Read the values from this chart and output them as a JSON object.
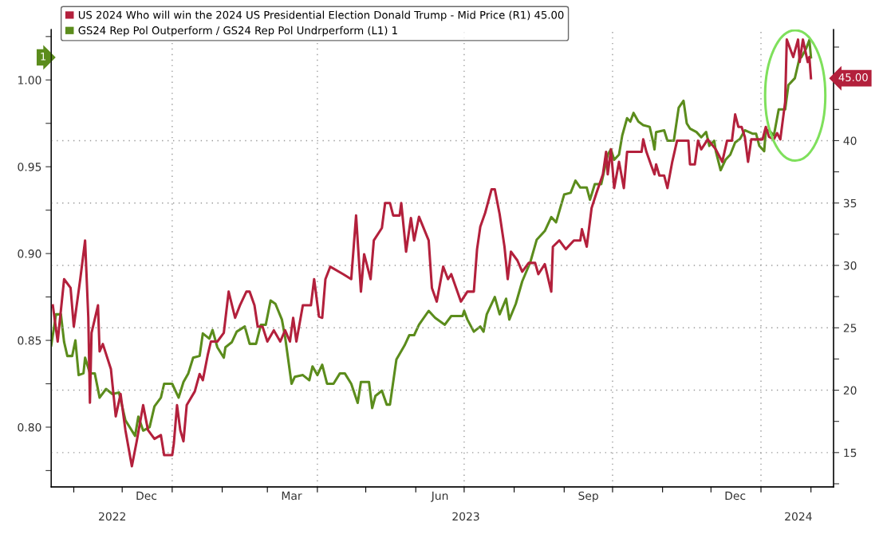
{
  "chart_data": {
    "type": "line",
    "xlim": [
      "2022-10-18",
      "2024-02-15"
    ],
    "xticks": [
      {
        "value": "2022-11-01",
        "label": null
      },
      {
        "value": "2022-12-01",
        "label": null
      },
      {
        "value": "2023-01-01",
        "label": null
      },
      {
        "value": "2023-02-01",
        "label": null
      },
      {
        "value": "2023-03-01",
        "label": null
      },
      {
        "value": "2023-04-01",
        "label": null
      },
      {
        "value": "2023-05-01",
        "label": null
      },
      {
        "value": "2023-06-01",
        "label": null
      },
      {
        "value": "2023-07-01",
        "label": null
      },
      {
        "value": "2023-08-01",
        "label": null
      },
      {
        "value": "2023-09-01",
        "label": null
      },
      {
        "value": "2023-10-01",
        "label": null
      },
      {
        "value": "2023-11-01",
        "label": null
      },
      {
        "value": "2023-12-01",
        "label": null
      },
      {
        "value": "2024-01-01",
        "label": null
      },
      {
        "value": "2024-02-01",
        "label": null
      },
      {
        "value": "2022-12-16",
        "label": "Dec"
      },
      {
        "value": "2023-03-16",
        "label": "Mar"
      },
      {
        "value": "2023-06-16",
        "label": "Jun"
      },
      {
        "value": "2023-09-16",
        "label": "Sep"
      },
      {
        "value": "2023-12-16",
        "label": "Dec"
      }
    ],
    "ylim": [
      0.7656,
      1.029
    ],
    "yticks": [
      {
        "value": 0.775,
        "label": null
      },
      {
        "value": 0.8,
        "label": "0.80"
      },
      {
        "value": 0.825,
        "label": null
      },
      {
        "value": 0.85,
        "label": "0.85"
      },
      {
        "value": 0.875,
        "label": null
      },
      {
        "value": 0.9,
        "label": "0.90"
      },
      {
        "value": 0.925,
        "label": null
      },
      {
        "value": 0.95,
        "label": "0.95"
      },
      {
        "value": 0.975,
        "label": null
      },
      {
        "value": 1.0,
        "label": "1.00"
      },
      {
        "value": 1.025,
        "label": null
      }
    ],
    "y2lim": [
      12.25,
      48.9
    ],
    "y2ticks": [
      {
        "value": 12.5,
        "label": null
      },
      15,
      {
        "value": 17.5,
        "label": null
      },
      20,
      {
        "value": 22.5,
        "label": null
      },
      25,
      {
        "value": 27.5,
        "label": null
      },
      30,
      {
        "value": 32.5,
        "label": null
      },
      35,
      {
        "value": 37.5,
        "label": null
      },
      40,
      {
        "value": 42.5,
        "label": null
      },
      {
        "value": 45,
        "label": null
      },
      {
        "value": 47.5,
        "label": null
      }
    ],
    "grid": true,
    "legend": "top left",
    "line_style": "solid",
    "annotations": [
      "45.00",
      "1",
      "2022",
      "2023",
      "2024"
    ],
    "series": [
      {
        "name": "US 2024 Who will win the 2024 US Presidential Election Donald Trump - Mid Price (R1) 45.00",
        "color": "#b3203c",
        "axis": "y2",
        "x": [
          "2022-10-19",
          "2022-10-22",
          "2022-10-26",
          "2022-10-30",
          "2022-11-01",
          "2022-11-05",
          "2022-11-08",
          "2022-11-10",
          "2022-11-11",
          "2022-11-12",
          "2022-11-16",
          "2022-11-17",
          "2022-11-19",
          "2022-11-24",
          "2022-11-27",
          "2022-11-30",
          "2022-12-03",
          "2022-12-07",
          "2022-12-10",
          "2022-12-14",
          "2022-12-17",
          "2022-12-21",
          "2022-12-25",
          "2022-12-27",
          "2023-01-01",
          "2023-01-02",
          "2023-01-04",
          "2023-01-06",
          "2023-01-08",
          "2023-01-10",
          "2023-01-15",
          "2023-01-18",
          "2023-01-20",
          "2023-01-23",
          "2023-01-25",
          "2023-01-29",
          "2023-02-02",
          "2023-02-05",
          "2023-02-09",
          "2023-02-12",
          "2023-02-16",
          "2023-02-18",
          "2023-02-21",
          "2023-02-23",
          "2023-02-26",
          "2023-03-01",
          "2023-03-05",
          "2023-03-09",
          "2023-03-12",
          "2023-03-15",
          "2023-03-17",
          "2023-03-19",
          "2023-03-23",
          "2023-03-28",
          "2023-03-30",
          "2023-04-02",
          "2023-04-04",
          "2023-04-06",
          "2023-04-09",
          "2023-04-17",
          "2023-04-22",
          "2023-04-25",
          "2023-04-28",
          "2023-04-30",
          "2023-05-04",
          "2023-05-06",
          "2023-05-11",
          "2023-05-13",
          "2023-05-16",
          "2023-05-18",
          "2023-05-22",
          "2023-05-23",
          "2023-05-26",
          "2023-05-29",
          "2023-05-31",
          "2023-06-03",
          "2023-06-09",
          "2023-06-11",
          "2023-06-14",
          "2023-06-18",
          "2023-06-21",
          "2023-06-23",
          "2023-06-29",
          "2023-07-03",
          "2023-07-07",
          "2023-07-09",
          "2023-07-11",
          "2023-07-14",
          "2023-07-18",
          "2023-07-20",
          "2023-07-23",
          "2023-07-26",
          "2023-07-28",
          "2023-07-30",
          "2023-08-03",
          "2023-08-06",
          "2023-08-10",
          "2023-08-14",
          "2023-08-16",
          "2023-08-20",
          "2023-08-24",
          "2023-08-25",
          "2023-08-29",
          "2023-09-02",
          "2023-09-07",
          "2023-09-11",
          "2023-09-12",
          "2023-09-15",
          "2023-09-18",
          "2023-09-21",
          "2023-09-25",
          "2023-09-27",
          "2023-09-28",
          "2023-09-30",
          "2023-10-02",
          "2023-10-05",
          "2023-10-08",
          "2023-10-10",
          "2023-10-19",
          "2023-10-20",
          "2023-10-22",
          "2023-10-25",
          "2023-10-27",
          "2023-10-28",
          "2023-10-30",
          "2023-11-02",
          "2023-11-04",
          "2023-11-07",
          "2023-11-10",
          "2023-11-17",
          "2023-11-18",
          "2023-11-21",
          "2023-11-23",
          "2023-11-25",
          "2023-11-29",
          "2023-12-04",
          "2023-12-08",
          "2023-12-11",
          "2023-12-14",
          "2023-12-16",
          "2023-12-18",
          "2023-12-20",
          "2023-12-22",
          "2023-12-24",
          "2023-12-26",
          "2024-01-02",
          "2024-01-04",
          "2024-01-06",
          "2024-01-09",
          "2024-01-11",
          "2024-01-13",
          "2024-01-16",
          "2024-01-17",
          "2024-01-21",
          "2024-01-24",
          "2024-01-25",
          "2024-01-27",
          "2024-01-30",
          "2024-01-31",
          "2024-02-01"
        ],
        "values": [
          26.8,
          23.9,
          28.9,
          28.2,
          25.1,
          28.9,
          32.0,
          25.8,
          19.0,
          24.6,
          26.8,
          23.1,
          23.7,
          21.7,
          17.9,
          19.7,
          16.8,
          13.9,
          15.9,
          18.8,
          16.8,
          16.1,
          16.4,
          14.8,
          14.8,
          15.7,
          18.8,
          16.8,
          15.9,
          18.8,
          19.9,
          21.3,
          20.8,
          22.8,
          23.9,
          23.9,
          24.6,
          27.9,
          25.8,
          26.8,
          27.9,
          27.9,
          26.8,
          25.1,
          25.1,
          23.9,
          24.8,
          23.9,
          24.8,
          23.9,
          25.8,
          23.9,
          26.8,
          26.8,
          28.9,
          25.9,
          25.8,
          28.9,
          29.9,
          29.3,
          28.9,
          34.0,
          27.9,
          30.9,
          28.9,
          32.0,
          33.0,
          35.0,
          35.0,
          34.0,
          34.0,
          35.0,
          31.1,
          33.8,
          32.0,
          33.9,
          32.0,
          28.2,
          27.1,
          29.9,
          28.9,
          29.3,
          27.1,
          27.9,
          27.9,
          31.3,
          33.1,
          34.2,
          36.1,
          36.1,
          34.1,
          31.5,
          28.9,
          31.1,
          30.4,
          29.5,
          30.2,
          30.2,
          29.3,
          30.1,
          27.9,
          31.5,
          32.0,
          31.3,
          32.0,
          32.0,
          32.9,
          31.5,
          34.6,
          35.8,
          37.3,
          39.1,
          37.3,
          39.3,
          36.2,
          38.3,
          36.2,
          39.1,
          39.1,
          40.1,
          39.1,
          38.0,
          37.3,
          38.1,
          37.2,
          37.2,
          36.2,
          38.3,
          40.0,
          40.0,
          38.1,
          38.1,
          40.0,
          39.3,
          40.1,
          39.3,
          38.3,
          40.0,
          40.0,
          42.1,
          41.1,
          41.1,
          40.3,
          38.3,
          40.1,
          40.1,
          41.1,
          40.3,
          40.1,
          40.6,
          40.1,
          43.1,
          48.1,
          46.7,
          48.1,
          46.3,
          48.1,
          46.3,
          46.7,
          45.0
        ]
      },
      {
        "name": "GS24 Rep Pol Outperform / GS24 Rep Pol Undrperform (L1) 1",
        "color": "#5b8c1c",
        "x": [
          "2022-10-18",
          "2022-10-21",
          "2022-10-24",
          "2022-10-26",
          "2022-10-28",
          "2022-10-31",
          "2022-11-02",
          "2022-11-04",
          "2022-11-07",
          "2022-11-08",
          "2022-11-11",
          "2022-11-14",
          "2022-11-17",
          "2022-11-21",
          "2022-11-25",
          "2022-11-29",
          "2022-12-03",
          "2022-12-09",
          "2022-12-11",
          "2022-12-14",
          "2022-12-18",
          "2022-12-21",
          "2022-12-25",
          "2022-12-27",
          "2023-01-01",
          "2023-01-05",
          "2023-01-08",
          "2023-01-11",
          "2023-01-14",
          "2023-01-18",
          "2023-01-20",
          "2023-01-24",
          "2023-01-26",
          "2023-01-29",
          "2023-02-02",
          "2023-02-03",
          "2023-02-07",
          "2023-02-10",
          "2023-02-15",
          "2023-02-18",
          "2023-02-22",
          "2023-02-25",
          "2023-02-28",
          "2023-03-03",
          "2023-03-06",
          "2023-03-10",
          "2023-03-12",
          "2023-03-16",
          "2023-03-18",
          "2023-03-23",
          "2023-03-27",
          "2023-03-29",
          "2023-04-01",
          "2023-04-04",
          "2023-04-07",
          "2023-04-11",
          "2023-04-15",
          "2023-04-18",
          "2023-04-22",
          "2023-04-26",
          "2023-04-28",
          "2023-05-03",
          "2023-05-05",
          "2023-05-07",
          "2023-05-11",
          "2023-05-14",
          "2023-05-16",
          "2023-05-20",
          "2023-05-25",
          "2023-05-28",
          "2023-05-31",
          "2023-06-03",
          "2023-06-09",
          "2023-06-13",
          "2023-06-19",
          "2023-06-23",
          "2023-06-30",
          "2023-07-01",
          "2023-07-03",
          "2023-07-07",
          "2023-07-11",
          "2023-07-13",
          "2023-07-15",
          "2023-07-20",
          "2023-07-23",
          "2023-07-27",
          "2023-07-29",
          "2023-08-02",
          "2023-08-06",
          "2023-08-11",
          "2023-08-15",
          "2023-08-20",
          "2023-08-24",
          "2023-08-27",
          "2023-09-01",
          "2023-09-05",
          "2023-09-08",
          "2023-09-11",
          "2023-09-15",
          "2023-09-17",
          "2023-09-20",
          "2023-09-24",
          "2023-09-28",
          "2023-09-30",
          "2023-10-02",
          "2023-10-05",
          "2023-10-07",
          "2023-10-10",
          "2023-10-12",
          "2023-10-14",
          "2023-10-17",
          "2023-10-20",
          "2023-10-24",
          "2023-10-26",
          "2023-10-27",
          "2023-10-28",
          "2023-11-02",
          "2023-11-04",
          "2023-11-08",
          "2023-11-11",
          "2023-11-14",
          "2023-11-16",
          "2023-11-18",
          "2023-11-22",
          "2023-11-25",
          "2023-11-28",
          "2023-11-30",
          "2023-12-03",
          "2023-12-04",
          "2023-12-07",
          "2023-12-10",
          "2023-12-13",
          "2023-12-16",
          "2023-12-19",
          "2023-12-22",
          "2023-12-27",
          "2023-12-29",
          "2023-12-31",
          "2024-01-03",
          "2024-01-04",
          "2024-01-06",
          "2024-01-09",
          "2024-01-12",
          "2024-01-16",
          "2024-01-18",
          "2024-01-22",
          "2024-01-25",
          "2024-01-26",
          "2024-01-29",
          "2024-01-31",
          "2024-02-01"
        ],
        "values": [
          0.847,
          0.865,
          0.865,
          0.849,
          0.841,
          0.841,
          0.85,
          0.83,
          0.831,
          0.84,
          0.831,
          0.831,
          0.817,
          0.822,
          0.819,
          0.82,
          0.804,
          0.795,
          0.806,
          0.798,
          0.8,
          0.812,
          0.817,
          0.825,
          0.825,
          0.817,
          0.826,
          0.831,
          0.84,
          0.841,
          0.854,
          0.851,
          0.856,
          0.846,
          0.84,
          0.846,
          0.849,
          0.855,
          0.858,
          0.848,
          0.848,
          0.859,
          0.859,
          0.873,
          0.871,
          0.862,
          0.852,
          0.825,
          0.829,
          0.83,
          0.827,
          0.835,
          0.83,
          0.836,
          0.825,
          0.825,
          0.831,
          0.831,
          0.825,
          0.814,
          0.826,
          0.826,
          0.811,
          0.818,
          0.821,
          0.813,
          0.813,
          0.839,
          0.847,
          0.853,
          0.853,
          0.859,
          0.867,
          0.863,
          0.859,
          0.864,
          0.864,
          0.867,
          0.862,
          0.855,
          0.858,
          0.855,
          0.865,
          0.875,
          0.865,
          0.874,
          0.862,
          0.871,
          0.884,
          0.895,
          0.908,
          0.913,
          0.921,
          0.918,
          0.934,
          0.935,
          0.942,
          0.938,
          0.938,
          0.931,
          0.94,
          0.94,
          0.957,
          0.96,
          0.954,
          0.957,
          0.968,
          0.978,
          0.976,
          0.981,
          0.976,
          0.974,
          0.973,
          0.965,
          0.96,
          0.97,
          0.971,
          0.965,
          0.965,
          0.984,
          0.988,
          0.975,
          0.972,
          0.97,
          0.967,
          0.97,
          0.962,
          0.965,
          0.959,
          0.948,
          0.954,
          0.957,
          0.964,
          0.966,
          0.971,
          0.969,
          0.969,
          0.962,
          0.959,
          0.971,
          0.971,
          0.968,
          0.983,
          0.983,
          0.997,
          1.001,
          1.013,
          1.013,
          1.018,
          1.023,
          1.013
        ]
      }
    ]
  }
}
